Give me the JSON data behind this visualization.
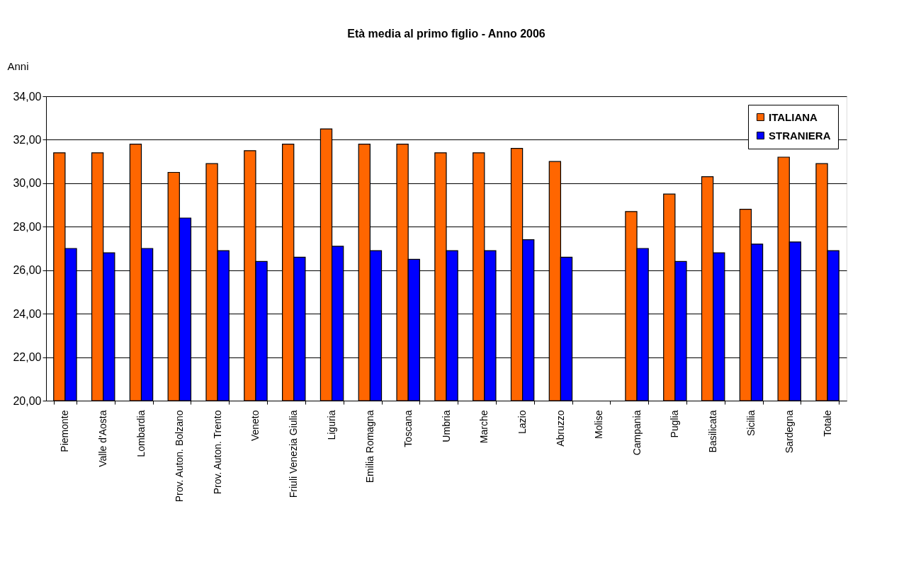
{
  "chart_data": {
    "type": "bar",
    "title": "Età media al primo figlio - Anno 2006",
    "ylabel": "Anni",
    "categories": [
      "Piemonte",
      "Valle d'Aosta",
      "Lombardia",
      "Prov. Auton. Bolzano",
      "Prov. Auton. Trento",
      "Veneto",
      "Friuli Venezia Giulia",
      "Liguria",
      "Emilia Romagna",
      "Toscana",
      "Umbria",
      "Marche",
      "Lazio",
      "Abruzzo",
      "Molise",
      "Campania",
      "Puglia",
      "Basilicata",
      "Sicilia",
      "Sardegna",
      "Totale"
    ],
    "series": [
      {
        "name": "ITALIANA",
        "color": "#ff6600",
        "values": [
          31.4,
          31.4,
          31.8,
          30.5,
          30.9,
          31.5,
          31.8,
          32.5,
          31.8,
          31.8,
          31.4,
          31.4,
          31.6,
          31.0,
          null,
          28.7,
          29.5,
          30.3,
          28.8,
          31.2,
          30.9
        ]
      },
      {
        "name": "STRANIERA",
        "color": "#0000ff",
        "values": [
          27.0,
          26.8,
          27.0,
          28.4,
          26.9,
          26.4,
          26.6,
          27.1,
          26.9,
          26.5,
          26.9,
          26.9,
          27.4,
          26.6,
          null,
          27.0,
          26.4,
          26.8,
          27.2,
          27.3,
          26.9
        ]
      }
    ],
    "ylim": [
      20,
      34
    ],
    "yticks": [
      {
        "value": 20,
        "label": "20,00"
      },
      {
        "value": 22,
        "label": "22,00"
      },
      {
        "value": 24,
        "label": "24,00"
      },
      {
        "value": 26,
        "label": "26,00"
      },
      {
        "value": 28,
        "label": "28,00"
      },
      {
        "value": 30,
        "label": "30,00"
      },
      {
        "value": 32,
        "label": "32,00"
      },
      {
        "value": 34,
        "label": "34,00"
      }
    ],
    "grid": "y",
    "legend": "top right"
  }
}
